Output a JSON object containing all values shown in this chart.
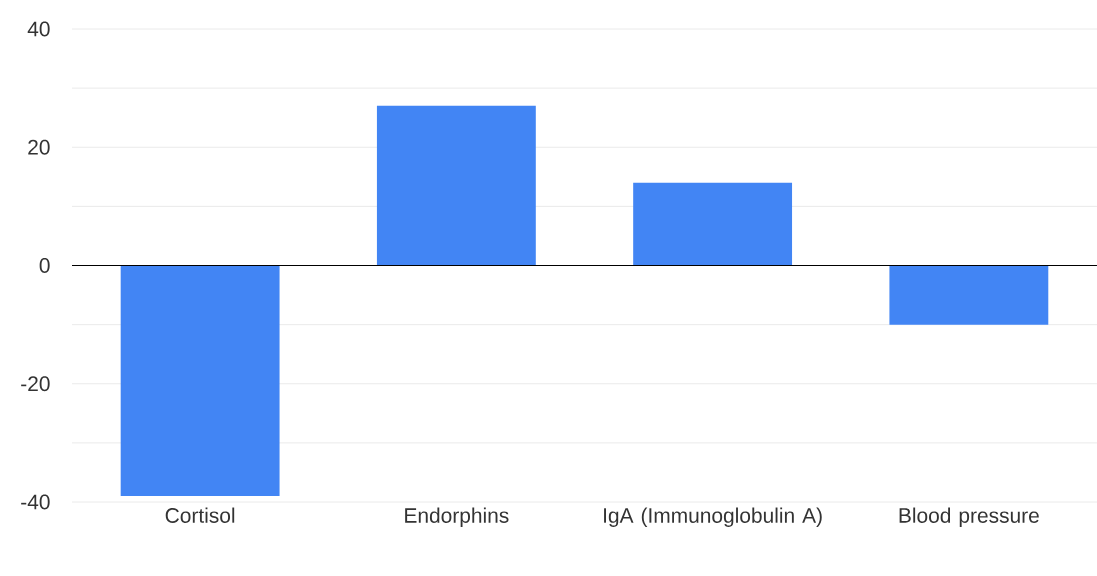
{
  "chart_data": {
    "type": "bar",
    "categories": [
      "Cortisol",
      "Endorphins",
      "IgA (Immunoglobulin A)",
      "Blood pressure"
    ],
    "values": [
      -39,
      27,
      14,
      -10
    ],
    "color": "#4285f4",
    "ylim": [
      -40,
      40
    ],
    "yticks": [
      -40,
      {
        "value": -30,
        "label": null
      },
      -20,
      {
        "value": -10,
        "label": null
      },
      0,
      {
        "value": 10,
        "label": null
      },
      20,
      {
        "value": 30,
        "label": null
      },
      40
    ],
    "grid": "y"
  }
}
